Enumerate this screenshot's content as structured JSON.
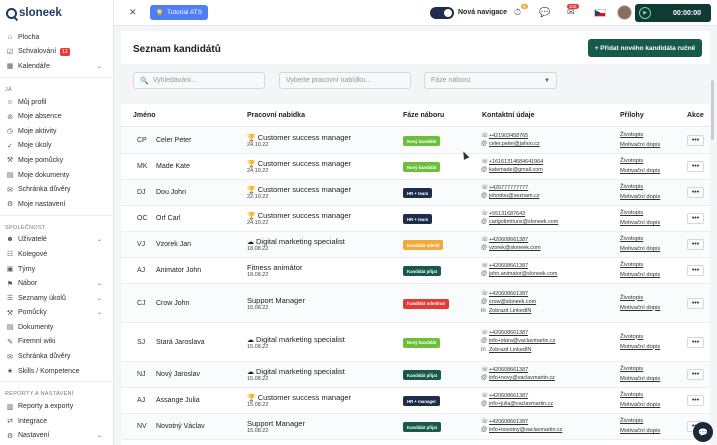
{
  "app": {
    "logo_text": "sloneek",
    "brand_color": "#17594a",
    "dark_color": "#1e2d4a"
  },
  "sidebar": {
    "top_items": [
      {
        "label": "Plocha",
        "icon": "home-icon"
      },
      {
        "label": "Schvalování",
        "icon": "approval-icon",
        "badge": "12"
      },
      {
        "label": "Kalendáře",
        "icon": "calendar-icon",
        "chevron": true
      }
    ],
    "section_ja": "JÁ",
    "ja_items": [
      {
        "label": "Můj profil",
        "icon": "user-icon"
      },
      {
        "label": "Moje absence",
        "icon": "absence-icon"
      },
      {
        "label": "Moje aktivity",
        "icon": "activity-icon"
      },
      {
        "label": "Moje úkoly",
        "icon": "task-icon"
      },
      {
        "label": "Moje pomůcky",
        "icon": "tools-icon"
      },
      {
        "label": "Moje dokumenty",
        "icon": "document-icon"
      },
      {
        "label": "Schránka důvěry",
        "icon": "mailbox-icon"
      },
      {
        "label": "Moje nastavení",
        "icon": "gear-icon"
      }
    ],
    "section_company": "SPOLEČNOST",
    "company_items": [
      {
        "label": "Uživatelé",
        "icon": "users-icon",
        "chevron": true
      },
      {
        "label": "Kolegové",
        "icon": "colleagues-icon"
      },
      {
        "label": "Týmy",
        "icon": "teams-icon"
      },
      {
        "label": "Nábor",
        "icon": "recruitment-icon",
        "chevron": true
      },
      {
        "label": "Seznamy úkolů",
        "icon": "tasklist-icon",
        "chevron": true
      },
      {
        "label": "Pomůcky",
        "icon": "tools-icon",
        "chevron": true
      },
      {
        "label": "Dokumenty",
        "icon": "document-icon"
      },
      {
        "label": "Firemní wiki",
        "icon": "wiki-icon"
      },
      {
        "label": "Schránka důvěry",
        "icon": "mailbox-icon"
      },
      {
        "label": "Skills / Kompetence",
        "icon": "skills-icon"
      }
    ],
    "section_reports": "REPORTY A NASTAVENÍ",
    "report_items": [
      {
        "label": "Reporty a exporty",
        "icon": "reports-icon"
      },
      {
        "label": "Integrace",
        "icon": "integration-icon"
      },
      {
        "label": "Nastavení",
        "icon": "gear-icon",
        "chevron": true
      }
    ]
  },
  "topbar": {
    "tutorial_label": "Tutorial ATS",
    "toggle_label": "Nová navigace",
    "notif_badge_1": "6",
    "notif_badge_2": "342",
    "timer": "00:00:00"
  },
  "page": {
    "title": "Seznam kandidátů",
    "add_button": "+ Přidat nového kandidáta ručně",
    "search_placeholder": "Vyhledávání...",
    "offer_placeholder": "Vyberte pracovní nabídku...",
    "phase_placeholder": "Fáze náboru"
  },
  "table": {
    "headers": {
      "name": "Jméno",
      "position": "Pracovní nabídka",
      "phase": "Fáze náboru",
      "contact": "Kontaktní údaje",
      "attachments": "Přílohy",
      "action": "Akce"
    },
    "rows": [
      {
        "initials": "CP",
        "name": "Celer Peter",
        "icon": "trophy-icon",
        "position": "Customer success manager",
        "date": "24.10.22",
        "phase": "Nový kandidát",
        "phase_color": "#6bbf3b",
        "phone": "+421903458765",
        "email": "celer.peter@jahoo.cz",
        "attachments": [
          "Životopis",
          "Motivační dopis"
        ]
      },
      {
        "initials": "MK",
        "name": "Made Kate",
        "icon": "trophy-icon",
        "position": "Customer success manager",
        "date": "24.10.22",
        "phase": "Nový kandidát",
        "phase_color": "#6bbf3b",
        "phone": "+16161314684641964",
        "email": "katemade@gmail.com",
        "attachments": [
          "Životopis",
          "Motivační dopis"
        ]
      },
      {
        "initials": "DJ",
        "name": "Dou John",
        "icon": "trophy-icon",
        "position": "Customer success manager",
        "date": "22.10.22",
        "phase": "HR + team",
        "phase_color": "#1e2d4a",
        "phone": "+420777777777",
        "email": "johndou@seznam.cz",
        "attachments": [
          "Životopis",
          "Motivační dopis"
        ]
      },
      {
        "initials": "OC",
        "name": "Orf Carl",
        "icon": "trophy-icon",
        "position": "Customer success manager",
        "date": "24.10.22",
        "phase": "HR + team",
        "phase_color": "#1e2d4a",
        "phone": "+55131687643",
        "email": "carlgottmituns@sloneek.com",
        "attachments": [
          "Životopis",
          "Motivační dopis"
        ]
      },
      {
        "initials": "VJ",
        "name": "Vzorek Jan",
        "icon": "cloud-icon",
        "position": "Digital marketing specialist",
        "date": "18.08.22",
        "phase": "Kandidát odmítl",
        "phase_color": "#f0a93b",
        "phone": "+420608661387",
        "email": "vzorek@sloneek.com",
        "attachments": [
          "Životopis",
          "Motivační dopis"
        ]
      },
      {
        "initials": "AJ",
        "name": "Animator John",
        "icon": "",
        "position": "Fitness animátor",
        "date": "18.08.22",
        "phase": "Kandidát přijat",
        "phase_color": "#17594a",
        "phone": "+420608661387",
        "email": "john.animator@sloneek.com",
        "attachments": [
          "Životopis",
          "Motivační dopis"
        ]
      },
      {
        "initials": "CJ",
        "name": "Crow John",
        "icon": "",
        "position": "Support Manager",
        "date": "15.08.22",
        "phase": "Kandidát odmítnut",
        "phase_color": "#e53935",
        "phone": "+420608661387",
        "email": "crow@sloneek.com",
        "linkedin": "Zobrazit LinkedIN",
        "attachments": [
          "Životopis",
          "Motivační dopis"
        ]
      },
      {
        "initials": "SJ",
        "name": "Stará Jaroslava",
        "icon": "cloud-icon",
        "position": "Digital marketing specialist",
        "date": "15.08.22",
        "phase": "Nový kandidát",
        "phase_color": "#6bbf3b",
        "phone": "+420608661387",
        "email": "info+stara@vaclavmartin.cz",
        "linkedin": "Zobrazit LinkedIN",
        "attachments": [
          "Životopis",
          "Motivační dopis"
        ]
      },
      {
        "initials": "NJ",
        "name": "Nový Jaroslav",
        "icon": "cloud-icon",
        "position": "Digital marketing specialist",
        "date": "15.08.22",
        "phase": "Kandidát přijat",
        "phase_color": "#17594a",
        "phone": "+420608661387",
        "email": "info+novy@vaclavmartin.cz",
        "attachments": [
          "Životopis",
          "Motivační dopis"
        ]
      },
      {
        "initials": "AJ",
        "name": "Assange Julia",
        "icon": "trophy-icon",
        "position": "Customer success manager",
        "date": "15.08.22",
        "phase": "HR + manager",
        "phase_color": "#1e2d4a",
        "phone": "+420608661387",
        "email": "info+julia@vaclavmartin.cz",
        "attachments": [
          "Životopis",
          "Motivační dopis"
        ]
      },
      {
        "initials": "NV",
        "name": "Novotný Václav",
        "icon": "",
        "position": "Support Manager",
        "date": "15.08.22",
        "phase": "Kandidát přijat",
        "phase_color": "#17594a",
        "phone": "+420608661387",
        "email": "info+novotny@vaclavmartin.cz",
        "attachments": [
          "Životopis",
          "Motivační dopis"
        ]
      }
    ]
  }
}
